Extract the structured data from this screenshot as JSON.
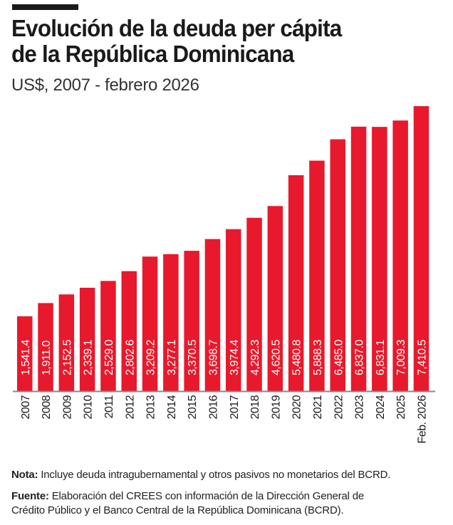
{
  "title_line1": "Evolución de la deuda per cápita",
  "title_line2": "de la República Dominicana",
  "subtitle": "US$, 2007 - febrero 2026",
  "colors": {
    "bar": "#e8192c",
    "axis": "#888888",
    "label": "#ffffff",
    "text": "#1a1a1a"
  },
  "chart_data": {
    "type": "bar",
    "title": "Evolución de la deuda per cápita de la República Dominicana",
    "subtitle": "US$, 2007 - febrero 2026",
    "categories": [
      "2007",
      "2008",
      "2009",
      "2010",
      "2011",
      "2012",
      "2013",
      "2014",
      "2015",
      "2016",
      "2017",
      "2018",
      "2019",
      "2020",
      "2021",
      "2022",
      "2023",
      "2024",
      "2025",
      "Feb. 2026"
    ],
    "values": [
      1541.4,
      1911.0,
      2152.5,
      2339.1,
      2529.0,
      2802.6,
      3209.2,
      3277.1,
      3370.5,
      3698.7,
      3974.4,
      4292.3,
      4620.5,
      5480.8,
      5888.3,
      6485.0,
      6837.0,
      6831.1,
      7009.3,
      7410.5
    ],
    "labels": [
      "1,541.4",
      "1,911.0",
      "2,152.5",
      "2,339.1",
      "2,529.0",
      "2,802.6",
      "3,209.2",
      "3,277.1",
      "3,370.5",
      "3,698.7",
      "3,974.4",
      "4,292.3",
      "4,620.5",
      "5,480.8",
      "5,888.3",
      "6,485.0",
      "6,837.0",
      "6,831.1",
      "7,009.3",
      "7,410.5"
    ],
    "xlabel": "",
    "ylabel": "",
    "ylim": [
      -547,
      7410.5
    ],
    "grid": false,
    "legend": "none"
  },
  "note": {
    "label": "Nota:",
    "text": " Incluye deuda intragubernamental y otros pasivos no monetarios del BCRD."
  },
  "source": {
    "label": "Fuente:",
    "text_line1": " Elaboración del CREES con información de la Dirección General de",
    "text_line2": "Crédito Público y el Banco Central de la República Dominicana (BCRD)."
  }
}
